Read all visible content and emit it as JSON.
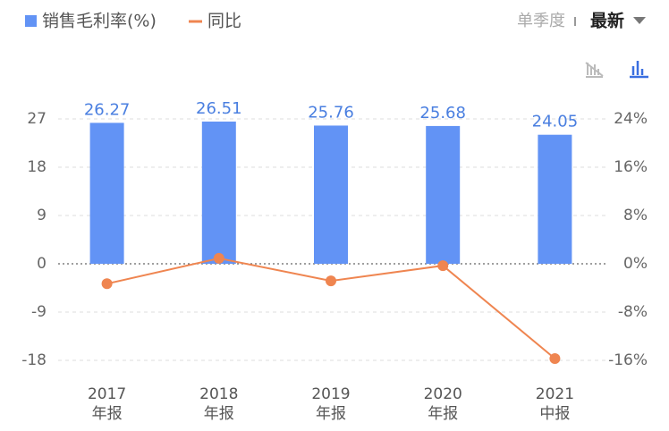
{
  "chart_data": {
    "type": "bar_line",
    "categories": [
      [
        "2017",
        "年报"
      ],
      [
        "2018",
        "年报"
      ],
      [
        "2019",
        "年报"
      ],
      [
        "2020",
        "年报"
      ],
      [
        "2021",
        "中报"
      ]
    ],
    "series": [
      {
        "name": "销售毛利率(%)",
        "type": "bar",
        "color": "#6293f5",
        "axis": "y",
        "values": [
          26.27,
          26.51,
          25.76,
          25.68,
          24.05
        ]
      },
      {
        "name": "同比",
        "type": "line",
        "color": "#ef8550",
        "axis": "y2",
        "values": [
          -3.3,
          0.91,
          -2.83,
          -0.31,
          -15.7
        ]
      }
    ],
    "ylim": [
      -18,
      27
    ],
    "yticks": [
      -18,
      -9,
      0,
      9,
      18,
      27
    ],
    "y2lim": [
      -16,
      24
    ],
    "y2ticks": [
      {
        "value": -16,
        "label": "-16%"
      },
      {
        "value": -8,
        "label": "-8%"
      },
      {
        "value": 0,
        "label": "0%"
      },
      {
        "value": 8,
        "label": "8%"
      },
      {
        "value": 16,
        "label": "16%"
      },
      {
        "value": 24,
        "label": "24%"
      }
    ],
    "grid": true
  },
  "toolbar": {
    "period": "单季度",
    "selected": "最新"
  }
}
